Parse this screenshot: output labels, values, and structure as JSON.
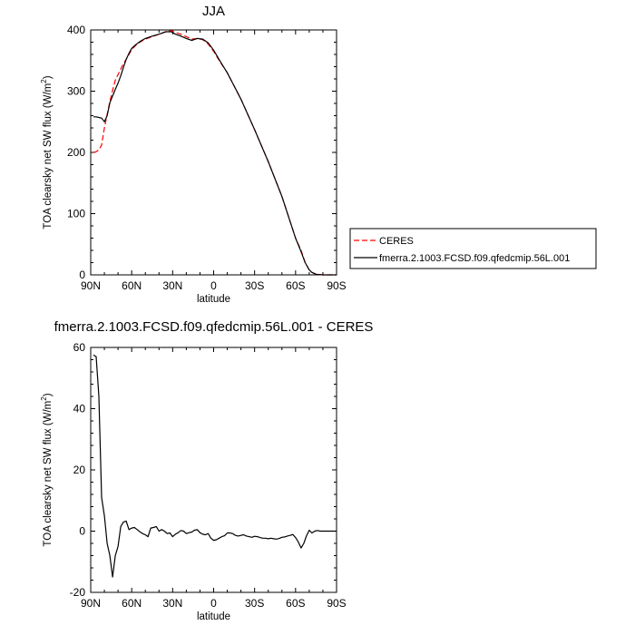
{
  "chart_data": [
    {
      "type": "line",
      "title": "JJA",
      "xlabel": "latitude",
      "ylabel": "TOA clearsky net SW flux (W/m",
      "ylabel_sup": "2",
      "ylabel_close": ")",
      "xlim": [
        90,
        -90
      ],
      "ylim": [
        0,
        400
      ],
      "x_ticks": [
        90,
        60,
        30,
        0,
        -30,
        -60,
        -90
      ],
      "x_tick_labels": [
        "90N",
        "60N",
        "30N",
        "0",
        "30S",
        "60S",
        "90S"
      ],
      "y_ticks": [
        0,
        100,
        200,
        300,
        400
      ],
      "y_tick_labels": [
        "0",
        "100",
        "200",
        "300",
        "400"
      ],
      "legend": "right",
      "series": [
        {
          "name": "CERES",
          "color": "#ff0000",
          "style": "dashed",
          "x": [
            88,
            86,
            84,
            82,
            80,
            78,
            76,
            74,
            72,
            70,
            68,
            66,
            64,
            62,
            60,
            57,
            54,
            50,
            45,
            40,
            35,
            31,
            28,
            24,
            20,
            16,
            12,
            8,
            4,
            0,
            -5,
            -10,
            -20,
            -30,
            -40,
            -50,
            -60,
            -64,
            -67,
            -70,
            -72,
            -75,
            -80,
            -85,
            -90
          ],
          "y": [
            200,
            201,
            204,
            212,
            240,
            262,
            283,
            301,
            318,
            327,
            336,
            345,
            352,
            360,
            368,
            375,
            380,
            385,
            389,
            393,
            397,
            399,
            396,
            393,
            389,
            385,
            386,
            384,
            377,
            365,
            347,
            330,
            287,
            237,
            185,
            128,
            60,
            40,
            20,
            8,
            4,
            1,
            0,
            0,
            0
          ]
        },
        {
          "name": "fmerra.2.1003.FCSD.f09.qfedcmip.56L.001",
          "color": "#000000",
          "style": "solid",
          "x": [
            88,
            86,
            84,
            82,
            80,
            78,
            76,
            74,
            72,
            70,
            68,
            66,
            64,
            62,
            60,
            57,
            54,
            50,
            45,
            40,
            35,
            31,
            28,
            24,
            20,
            16,
            12,
            8,
            4,
            0,
            -5,
            -10,
            -20,
            -30,
            -40,
            -50,
            -60,
            -64,
            -67,
            -70,
            -72,
            -75,
            -80,
            -85,
            -90
          ],
          "y": [
            258,
            258,
            257,
            256,
            250,
            260,
            281,
            292,
            303,
            313,
            325,
            339,
            352,
            362,
            370,
            376,
            381,
            386,
            390,
            393,
            397,
            397,
            393,
            390,
            386,
            383,
            386,
            385,
            379,
            367,
            348,
            330,
            287,
            237,
            185,
            128,
            60,
            38,
            20,
            8,
            4,
            1,
            0,
            0,
            0
          ]
        }
      ]
    },
    {
      "type": "line",
      "title": "fmerra.2.1003.FCSD.f09.qfedcmip.56L.001 - CERES",
      "xlabel": "latitude",
      "ylabel": "TOA clearsky net SW flux (W/m",
      "ylabel_sup": "2",
      "ylabel_close": ")",
      "xlim": [
        90,
        -90
      ],
      "ylim": [
        -20,
        60
      ],
      "x_ticks": [
        90,
        60,
        30,
        0,
        -30,
        -60,
        -90
      ],
      "x_tick_labels": [
        "90N",
        "60N",
        "30N",
        "0",
        "30S",
        "60S",
        "90S"
      ],
      "y_ticks": [
        -20,
        0,
        20,
        40,
        60
      ],
      "y_tick_labels": [
        "-20",
        "0",
        "20",
        "40",
        "60"
      ],
      "series": [
        {
          "name": "",
          "color": "#000000",
          "style": "solid",
          "x": [
            88,
            86,
            84,
            82,
            80,
            78,
            76,
            74,
            72,
            70,
            68,
            66,
            64,
            62,
            60,
            58,
            56,
            54,
            52,
            50,
            48,
            46,
            44,
            42,
            40,
            38,
            36,
            34,
            32,
            30,
            28,
            26,
            24,
            22,
            20,
            18,
            16,
            14,
            12,
            10,
            8,
            6,
            4,
            2,
            0,
            -2,
            -4,
            -6,
            -8,
            -10,
            -12,
            -14,
            -16,
            -18,
            -20,
            -22,
            -24,
            -26,
            -28,
            -30,
            -32,
            -34,
            -36,
            -38,
            -40,
            -42,
            -44,
            -46,
            -48,
            -50,
            -52,
            -54,
            -56,
            -58,
            -60,
            -62,
            -64,
            -66,
            -68,
            -70,
            -72,
            -74,
            -76,
            -78,
            -80,
            -82,
            -84,
            -86,
            -88,
            -90
          ],
          "y": [
            57.5,
            57,
            44,
            11,
            5,
            -4,
            -8,
            -15,
            -8,
            -5,
            1.5,
            3,
            3.3,
            0.5,
            1,
            1.2,
            0.5,
            -0.2,
            -0.8,
            -1.2,
            -1.8,
            1,
            1.2,
            1.5,
            0,
            0.5,
            0,
            -0.8,
            -0.6,
            -1.8,
            -1,
            -0.5,
            0.2,
            0,
            -0.8,
            -0.5,
            -0.3,
            0.3,
            0.5,
            -0.5,
            -1,
            -1.2,
            -0.8,
            -2.3,
            -3,
            -2.8,
            -2.3,
            -1.8,
            -1.5,
            -0.6,
            -0.6,
            -0.8,
            -1.4,
            -1.6,
            -1.4,
            -1.2,
            -1.6,
            -1.8,
            -2,
            -1.7,
            -1.8,
            -2.1,
            -2.3,
            -2.3,
            -2.5,
            -2.3,
            -2.5,
            -2.6,
            -2.4,
            -2,
            -1.9,
            -1.6,
            -1.4,
            -1.1,
            -2.1,
            -3.5,
            -5.5,
            -4,
            -1.5,
            0.3,
            -0.6,
            0,
            0.2,
            0,
            0,
            0,
            0,
            0,
            0,
            0
          ]
        }
      ]
    }
  ]
}
